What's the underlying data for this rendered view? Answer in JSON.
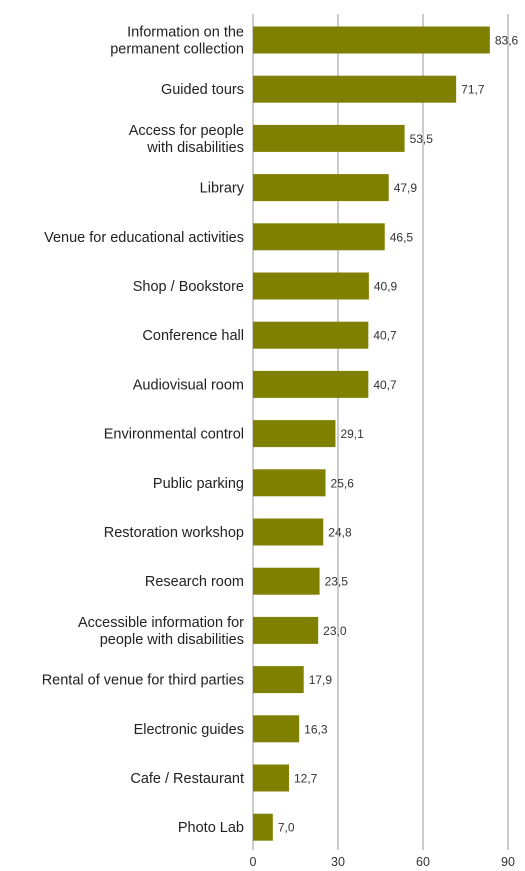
{
  "chart_data": {
    "type": "bar",
    "orientation": "horizontal",
    "title": "",
    "xlabel": "",
    "ylabel": "",
    "xlim": [
      0,
      90
    ],
    "x_ticks": [
      "0",
      "30",
      "60",
      "90"
    ],
    "grid": true,
    "bar_color": "#808000",
    "categories": [
      [
        "Information on the",
        "permanent collection"
      ],
      [
        "Guided tours"
      ],
      [
        "Access for people",
        "with disabilities"
      ],
      [
        "Library"
      ],
      [
        "Venue for educational activities"
      ],
      [
        "Shop / Bookstore"
      ],
      [
        "Conference hall"
      ],
      [
        "Audiovisual room"
      ],
      [
        "Environmental control"
      ],
      [
        "Public parking"
      ],
      [
        "Restoration workshop"
      ],
      [
        "Research room"
      ],
      [
        "Accessible  information for",
        "people with disabilities"
      ],
      [
        "Rental of venue for third parties"
      ],
      [
        "Electronic guides"
      ],
      [
        "Cafe / Restaurant"
      ],
      [
        "Photo Lab"
      ]
    ],
    "values": [
      83.6,
      71.7,
      53.5,
      47.9,
      46.5,
      40.9,
      40.7,
      40.7,
      29.1,
      25.6,
      24.8,
      23.5,
      23.0,
      17.9,
      16.3,
      12.7,
      7.0
    ],
    "value_labels": [
      "83,6",
      "71,7",
      "53,5",
      "47,9",
      "46,5",
      "40,9",
      "40,7",
      "40,7",
      "29,1",
      "25,6",
      "24,8",
      "23,5",
      "23,0",
      "17,9",
      "16,3",
      "12,7",
      "7,0"
    ]
  }
}
